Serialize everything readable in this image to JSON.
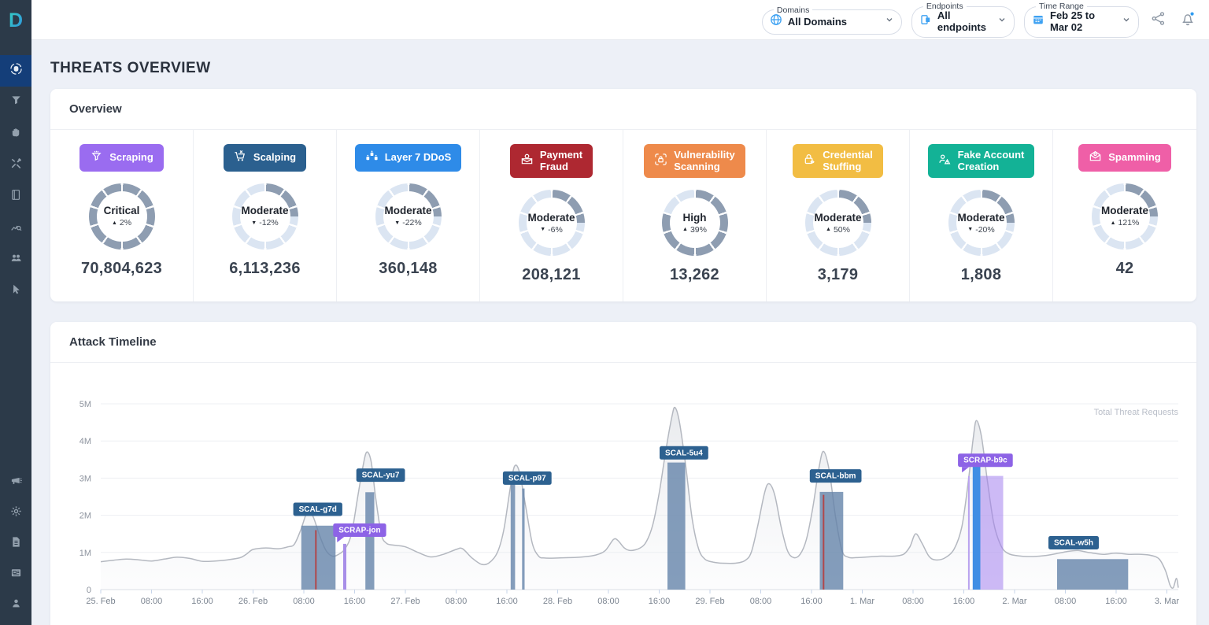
{
  "topbar": {
    "filters": [
      {
        "label": "Domains",
        "value": "All Domains",
        "icon": "globe-icon"
      },
      {
        "label": "Endpoints",
        "value": "All endpoints",
        "icon": "endpoints-icon"
      },
      {
        "label": "Time Range",
        "value": "Feb 25 to Mar 02",
        "icon": "calendar-icon"
      }
    ],
    "has_notification_dot": true
  },
  "sidebar": {
    "items": [
      {
        "icon": "threats-icon",
        "active": true
      },
      {
        "icon": "funnel-icon",
        "active": false
      },
      {
        "icon": "hand-icon",
        "active": false
      },
      {
        "icon": "tools-icon",
        "active": false
      },
      {
        "icon": "book-icon",
        "active": false
      },
      {
        "icon": "chart-search-icon",
        "active": false
      },
      {
        "icon": "users-icon",
        "active": false
      },
      {
        "icon": "cursor-icon",
        "active": false
      }
    ],
    "bottom_items": [
      {
        "icon": "megaphone-icon"
      },
      {
        "icon": "settings-icon"
      },
      {
        "icon": "document-icon"
      },
      {
        "icon": "news-icon"
      },
      {
        "icon": "account-icon"
      }
    ]
  },
  "page": {
    "title": "THREATS OVERVIEW"
  },
  "overview": {
    "title": "Overview",
    "gauge_filled_color": "#8e9db1",
    "gauge_empty_color": "#dbe5f2",
    "cards": [
      {
        "label": "Scraping",
        "icon": "funnel-icon",
        "badge_color": "#9a6cf0",
        "severity": "Critical",
        "gauge_fill": 1.0,
        "change": "2%",
        "direction": "up",
        "value": "70,804,623"
      },
      {
        "label": "Scalping",
        "icon": "cart-icon",
        "badge_color": "#2b608f",
        "severity": "Moderate",
        "gauge_fill": 0.25,
        "change": "-12%",
        "direction": "down",
        "value": "6,113,236"
      },
      {
        "label": "Layer 7 DDoS",
        "icon": "robots-icon",
        "badge_color": "#2e8be8",
        "severity": "Moderate",
        "gauge_fill": 0.25,
        "change": "-22%",
        "direction": "down",
        "value": "360,148"
      },
      {
        "label": "Payment\nFraud",
        "icon": "payment-fraud-icon",
        "badge_color": "#ae2831",
        "severity": "Moderate",
        "gauge_fill": 0.25,
        "change": "-6%",
        "direction": "down",
        "value": "208,121"
      },
      {
        "label": "Vulnerability\nScanning",
        "icon": "scan-lock-icon",
        "badge_color": "#ee8a4b",
        "severity": "High",
        "gauge_fill": 0.8,
        "change": "39%",
        "direction": "up",
        "value": "13,262"
      },
      {
        "label": "Credential\nStuffing",
        "icon": "credential-lock-icon",
        "badge_color": "#f2bd43",
        "severity": "Moderate",
        "gauge_fill": 0.25,
        "change": "50%",
        "direction": "up",
        "value": "3,179"
      },
      {
        "label": "Fake Account\nCreation",
        "icon": "fake-account-icon",
        "badge_color": "#13b296",
        "severity": "Moderate",
        "gauge_fill": 0.25,
        "change": "-20%",
        "direction": "down",
        "value": "1,808"
      },
      {
        "label": "Spamming",
        "icon": "spam-envelope-icon",
        "badge_color": "#ef5fa7",
        "severity": "Moderate",
        "gauge_fill": 0.25,
        "change": "121%",
        "direction": "up",
        "value": "42"
      }
    ]
  },
  "timeline": {
    "title": "Attack Timeline",
    "chart_data": {
      "type": "area",
      "title": "Attack Timeline",
      "legend": "Total Threat Requests",
      "legend_position": "top-right",
      "grid": true,
      "x_unit": "hours since Feb 25 00:00",
      "xlim": [
        0,
        169.8
      ],
      "ylim_millions": [
        0,
        5
      ],
      "yticks": [
        {
          "v": 0,
          "label": "0"
        },
        {
          "v": 1,
          "label": "1M"
        },
        {
          "v": 2,
          "label": "2M"
        },
        {
          "v": 3,
          "label": "3M"
        },
        {
          "v": 4,
          "label": "4M"
        },
        {
          "v": 5,
          "label": "5M"
        }
      ],
      "xticks": [
        {
          "t": 0,
          "label": "25. Feb"
        },
        {
          "t": 8,
          "label": "08:00"
        },
        {
          "t": 16,
          "label": "16:00"
        },
        {
          "t": 24,
          "label": "26. Feb"
        },
        {
          "t": 32,
          "label": "08:00"
        },
        {
          "t": 40,
          "label": "16:00"
        },
        {
          "t": 48,
          "label": "27. Feb"
        },
        {
          "t": 56,
          "label": "08:00"
        },
        {
          "t": 64,
          "label": "16:00"
        },
        {
          "t": 72,
          "label": "28. Feb"
        },
        {
          "t": 80,
          "label": "08:00"
        },
        {
          "t": 88,
          "label": "16:00"
        },
        {
          "t": 96,
          "label": "29. Feb"
        },
        {
          "t": 104,
          "label": "08:00"
        },
        {
          "t": 112,
          "label": "16:00"
        },
        {
          "t": 120,
          "label": "1. Mar"
        },
        {
          "t": 128,
          "label": "08:00"
        },
        {
          "t": 136,
          "label": "16:00"
        },
        {
          "t": 144,
          "label": "2. Mar"
        },
        {
          "t": 152,
          "label": "08:00"
        },
        {
          "t": 160,
          "label": "16:00"
        },
        {
          "t": 168,
          "label": "3. Mar"
        }
      ],
      "series": [
        {
          "name": "Total Threat Requests",
          "unit": "millions of requests",
          "points": [
            [
              0,
              0.75
            ],
            [
              2,
              0.79
            ],
            [
              4,
              0.82
            ],
            [
              6,
              0.8
            ],
            [
              8,
              0.77
            ],
            [
              10,
              0.82
            ],
            [
              12,
              0.87
            ],
            [
              14,
              0.84
            ],
            [
              16,
              0.76
            ],
            [
              18,
              0.77
            ],
            [
              20,
              0.8
            ],
            [
              22,
              0.86
            ],
            [
              23,
              0.96
            ],
            [
              24,
              1.08
            ],
            [
              26,
              1.12
            ],
            [
              28,
              1.1
            ],
            [
              29.5,
              1.15
            ],
            [
              30.5,
              1.22
            ],
            [
              31.5,
              1.6
            ],
            [
              32.3,
              2.0
            ],
            [
              32.8,
              2.1
            ],
            [
              33.5,
              1.95
            ],
            [
              34.5,
              1.45
            ],
            [
              35.5,
              1.05
            ],
            [
              36.5,
              0.9
            ],
            [
              37.5,
              0.95
            ],
            [
              38.5,
              1.1
            ],
            [
              39.5,
              1.5
            ],
            [
              40.5,
              2.5
            ],
            [
              41.3,
              3.3
            ],
            [
              41.9,
              3.7
            ],
            [
              42.6,
              3.45
            ],
            [
              43.3,
              2.5
            ],
            [
              44.2,
              1.5
            ],
            [
              45,
              1.25
            ],
            [
              46,
              1.2
            ],
            [
              48,
              1.15
            ],
            [
              50,
              1.0
            ],
            [
              52,
              0.88
            ],
            [
              54,
              0.95
            ],
            [
              56,
              1.08
            ],
            [
              57,
              1.1
            ],
            [
              58.5,
              0.85
            ],
            [
              60,
              0.68
            ],
            [
              61.2,
              0.72
            ],
            [
              62.5,
              1.0
            ],
            [
              63.5,
              1.6
            ],
            [
              64.5,
              2.7
            ],
            [
              65.2,
              3.32
            ],
            [
              66,
              3.15
            ],
            [
              67,
              2.2
            ],
            [
              68,
              1.25
            ],
            [
              69,
              0.9
            ],
            [
              70,
              0.85
            ],
            [
              72,
              0.85
            ],
            [
              74,
              0.86
            ],
            [
              76,
              0.88
            ],
            [
              78,
              0.93
            ],
            [
              79.5,
              1.05
            ],
            [
              80.8,
              1.35
            ],
            [
              81.5,
              1.32
            ],
            [
              82.5,
              1.12
            ],
            [
              83.5,
              1.05
            ],
            [
              85,
              1.12
            ],
            [
              86,
              1.3
            ],
            [
              87,
              1.75
            ],
            [
              88,
              2.6
            ],
            [
              89,
              3.7
            ],
            [
              90,
              4.65
            ],
            [
              90.5,
              4.9
            ],
            [
              91.2,
              4.5
            ],
            [
              92.2,
              3.3
            ],
            [
              93.2,
              1.9
            ],
            [
              94.2,
              1.1
            ],
            [
              95.2,
              0.82
            ],
            [
              96.5,
              0.74
            ],
            [
              98,
              0.71
            ],
            [
              100,
              0.71
            ],
            [
              101.5,
              0.78
            ],
            [
              102.5,
              1.0
            ],
            [
              103.5,
              1.7
            ],
            [
              104.6,
              2.6
            ],
            [
              105.3,
              2.85
            ],
            [
              106.2,
              2.55
            ],
            [
              107.2,
              1.7
            ],
            [
              108.2,
              1.05
            ],
            [
              109.2,
              0.86
            ],
            [
              110.2,
              0.95
            ],
            [
              111.2,
              1.35
            ],
            [
              112.2,
              2.2
            ],
            [
              113.2,
              3.3
            ],
            [
              113.9,
              3.72
            ],
            [
              114.8,
              3.2
            ],
            [
              115.8,
              1.95
            ],
            [
              116.8,
              1.05
            ],
            [
              117.8,
              0.87
            ],
            [
              119,
              0.86
            ],
            [
              121,
              0.88
            ],
            [
              123,
              0.9
            ],
            [
              125,
              0.9
            ],
            [
              126.5,
              0.95
            ],
            [
              127.5,
              1.15
            ],
            [
              128.4,
              1.5
            ],
            [
              129.4,
              1.25
            ],
            [
              130.5,
              0.9
            ],
            [
              131.5,
              0.8
            ],
            [
              133,
              0.85
            ],
            [
              134.5,
              1.1
            ],
            [
              135.7,
              1.7
            ],
            [
              136.7,
              2.9
            ],
            [
              137.5,
              4.1
            ],
            [
              138,
              4.55
            ],
            [
              138.8,
              4.1
            ],
            [
              139.7,
              2.95
            ],
            [
              140.7,
              1.8
            ],
            [
              141.8,
              1.2
            ],
            [
              143,
              0.97
            ],
            [
              145,
              0.9
            ],
            [
              147,
              0.89
            ],
            [
              149,
              0.92
            ],
            [
              151,
              0.98
            ],
            [
              152.5,
              1.03
            ],
            [
              154,
              1.05
            ],
            [
              156,
              0.99
            ],
            [
              158,
              0.95
            ],
            [
              160,
              0.98
            ],
            [
              162,
              0.95
            ],
            [
              164,
              0.95
            ],
            [
              165.5,
              0.92
            ],
            [
              166.8,
              0.82
            ],
            [
              167.8,
              0.5
            ],
            [
              168.5,
              0.12
            ],
            [
              169.0,
              0.05
            ],
            [
              169.5,
              0.3
            ],
            [
              169.8,
              0.05
            ]
          ]
        }
      ],
      "events": [
        {
          "id": "SCAL-g7d",
          "kind": "scalping",
          "bars": [
            {
              "t0": 31.6,
              "t1": 37.0,
              "v": 1.72
            }
          ],
          "lines": [
            {
              "t": 33.9,
              "v": 1.6,
              "color": "#b0474b"
            }
          ],
          "label": {
            "t": 34.2,
            "v": 1.98,
            "tail": false
          }
        },
        {
          "id": "SCRAP-jon",
          "kind": "scraping",
          "bars": [
            {
              "t0": 38.2,
              "t1": 38.7,
              "v": 1.23,
              "color": "#a88fe8"
            }
          ],
          "label": {
            "t": 40.8,
            "v": 1.42,
            "tail": true
          }
        },
        {
          "id": "SCAL-yu7",
          "kind": "scalping",
          "bars": [
            {
              "t0": 41.7,
              "t1": 43.1,
              "v": 2.62
            }
          ],
          "label": {
            "t": 44.1,
            "v": 2.9,
            "tail": false
          }
        },
        {
          "id": "SCAL-p97",
          "kind": "scalping",
          "bars": [
            {
              "t0": 64.6,
              "t1": 65.3,
              "v": 2.92
            },
            {
              "t0": 66.4,
              "t1": 66.8,
              "v": 2.72
            }
          ],
          "label": {
            "t": 67.2,
            "v": 2.82,
            "tail": false
          }
        },
        {
          "id": "SCAL-5u4",
          "kind": "scalping",
          "bars": [
            {
              "t0": 89.3,
              "t1": 92.1,
              "v": 3.42
            }
          ],
          "label": {
            "t": 91.9,
            "v": 3.5,
            "tail": false
          }
        },
        {
          "id": "SCAL-bbm",
          "kind": "scalping",
          "bars": [
            {
              "t0": 113.3,
              "t1": 117.0,
              "v": 2.63
            }
          ],
          "lines": [
            {
              "t": 113.9,
              "v": 2.55,
              "color": "#b0474b"
            }
          ],
          "label": {
            "t": 115.8,
            "v": 2.88,
            "tail": false
          }
        },
        {
          "id": "SCRAP-b9c",
          "kind": "scraping",
          "bars": [
            {
              "t0": 137.4,
              "t1": 138.6,
              "v": 3.5,
              "color": "#3f8ee4"
            },
            {
              "t0": 138.6,
              "t1": 142.2,
              "v": 3.06,
              "color": "rgba(164,130,238,0.55)"
            }
          ],
          "lines": [
            {
              "t": 136.8,
              "v": 3.05,
              "color": "#b9a2ef"
            }
          ],
          "label": {
            "t": 139.4,
            "v": 3.3,
            "tail": true
          }
        },
        {
          "id": "SCAL-w5h",
          "kind": "scalping",
          "bars": [
            {
              "t0": 150.7,
              "t1": 161.9,
              "v": 0.82
            }
          ],
          "label": {
            "t": 153.3,
            "v": 1.08,
            "tail": false
          }
        }
      ],
      "colors": {
        "area_stroke": "#b4b8c0",
        "area_fill_top": "rgba(205,209,216,0.45)",
        "area_fill_bottom": "rgba(244,245,248,0.25)",
        "scalping_bar": "rgba(97,130,168,0.78)",
        "scalping_label_bg": "#2d6190",
        "scraping_label_bg": "#8d63e6",
        "grid": "#edeff3",
        "axis": "#d7dbe2",
        "tick": "#c7d5ea",
        "tick_text": "#7d8692",
        "legend_text": "#b9bec8"
      }
    }
  }
}
